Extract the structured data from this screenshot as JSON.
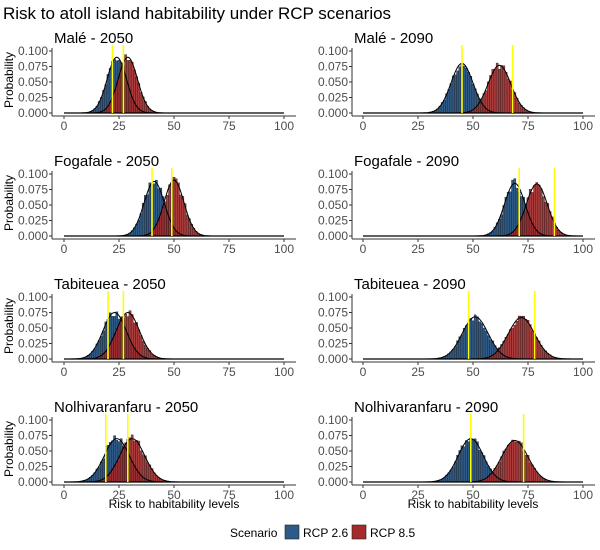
{
  "chart_data": {
    "type": "bar",
    "title": "Risk to atoll island habitability under RCP scenarios",
    "xlabel": "Risk to habitability levels",
    "ylabel": "Probability",
    "xlim": [
      0,
      100
    ],
    "ylim": [
      0,
      0.1
    ],
    "xticks": [
      "0",
      "25",
      "50",
      "75",
      "100"
    ],
    "yticks": [
      "0.000",
      "0.025",
      "0.050",
      "0.075",
      "0.100"
    ],
    "legend": {
      "title": "Scenario",
      "position": "bottom",
      "items": [
        {
          "label": "RCP 2.6",
          "color": "#2E5A87"
        },
        {
          "label": "RCP 8.5",
          "color": "#A52A2A"
        }
      ]
    },
    "threshold_color": "#FFFF00",
    "panels": [
      {
        "title": "Malé  -  2050",
        "series": [
          {
            "name": "RCP 2.6",
            "mean": 24,
            "sd": 4.4,
            "peak": 0.09
          },
          {
            "name": "RCP 8.5",
            "mean": 29,
            "sd": 4.4,
            "peak": 0.09
          }
        ],
        "thresholds": [
          22,
          27
        ]
      },
      {
        "title": "Malé  -  2090",
        "series": [
          {
            "name": "RCP 2.6",
            "mean": 45,
            "sd": 5.0,
            "peak": 0.08
          },
          {
            "name": "RCP 8.5",
            "mean": 62,
            "sd": 5.2,
            "peak": 0.077
          }
        ],
        "thresholds": [
          45,
          68
        ]
      },
      {
        "title": "Fogafale  -  2050",
        "series": [
          {
            "name": "RCP 2.6",
            "mean": 41,
            "sd": 4.6,
            "peak": 0.088
          },
          {
            "name": "RCP 8.5",
            "mean": 50,
            "sd": 4.5,
            "peak": 0.09
          }
        ],
        "thresholds": [
          40,
          49
        ]
      },
      {
        "title": "Fogafale  -  2090",
        "series": [
          {
            "name": "RCP 2.6",
            "mean": 69,
            "sd": 4.7,
            "peak": 0.085
          },
          {
            "name": "RCP 8.5",
            "mean": 79,
            "sd": 4.8,
            "peak": 0.084
          }
        ],
        "thresholds": [
          71,
          87
        ]
      },
      {
        "title": "Tabiteuea  -  2050",
        "series": [
          {
            "name": "RCP 2.6",
            "mean": 23,
            "sd": 5.3,
            "peak": 0.075
          },
          {
            "name": "RCP 8.5",
            "mean": 29,
            "sd": 5.3,
            "peak": 0.075
          }
        ],
        "thresholds": [
          20,
          27
        ]
      },
      {
        "title": "Tabiteuea  -  2090",
        "series": [
          {
            "name": "RCP 2.6",
            "mean": 51,
            "sd": 5.9,
            "peak": 0.068
          },
          {
            "name": "RCP 8.5",
            "mean": 72,
            "sd": 6.0,
            "peak": 0.067
          }
        ],
        "thresholds": [
          48,
          78
        ]
      },
      {
        "title": "Nolhivaranfaru  -  2050",
        "series": [
          {
            "name": "RCP 2.6",
            "mean": 24,
            "sd": 5.7,
            "peak": 0.07
          },
          {
            "name": "RCP 8.5",
            "mean": 31,
            "sd": 5.7,
            "peak": 0.07
          }
        ],
        "thresholds": [
          19,
          29
        ]
      },
      {
        "title": "Nolhivaranfaru  -  2090",
        "series": [
          {
            "name": "RCP 2.6",
            "mean": 49,
            "sd": 5.7,
            "peak": 0.07
          },
          {
            "name": "RCP 8.5",
            "mean": 69,
            "sd": 6.0,
            "peak": 0.067
          }
        ],
        "thresholds": [
          49,
          73
        ]
      }
    ]
  }
}
